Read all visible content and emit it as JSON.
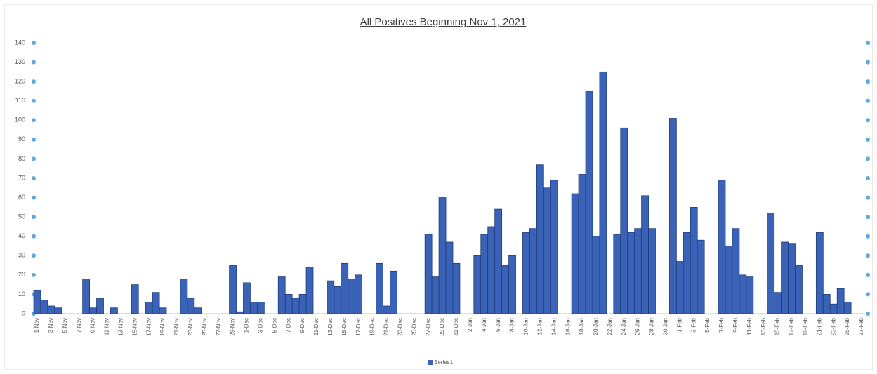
{
  "chart_data": {
    "type": "bar",
    "title": "All Positives Beginning Nov 1, 2021",
    "categories": [
      "1-Nov",
      null,
      "3-Nov",
      null,
      "5-Nov",
      null,
      "7-Nov",
      null,
      "9-Nov",
      null,
      "11-Nov",
      null,
      "13-Nov",
      null,
      "15-Nov",
      null,
      "17-Nov",
      null,
      "19-Nov",
      null,
      "21-Nov",
      null,
      "23-Nov",
      null,
      "25-Nov",
      null,
      "27-Nov",
      null,
      "29-Nov",
      null,
      "1-Dec",
      null,
      "3-Dec",
      null,
      "5-Dec",
      null,
      "7-Dec",
      null,
      "9-Dec",
      null,
      "11-Dec",
      null,
      "13-Dec",
      null,
      "15-Dec",
      null,
      "17-Dec",
      null,
      "19-Dec",
      null,
      "21-Dec",
      null,
      "23-Dec",
      null,
      "25-Dec",
      null,
      "27-Dec",
      null,
      "29-Dec",
      null,
      "31-Dec",
      null,
      "2-Jan",
      null,
      "4-Jan",
      null,
      "6-Jan",
      null,
      "8-Jan",
      null,
      "10-Jan",
      null,
      "12-Jan",
      null,
      "14-Jan",
      null,
      "16-Jan",
      null,
      "18-Jan",
      null,
      "20-Jan",
      null,
      "22-Jan",
      null,
      "24-Jan",
      null,
      "26-Jan",
      null,
      "28-Jan",
      null,
      "30-Jan",
      null,
      "1-Feb",
      null,
      "3-Feb",
      null,
      "5-Feb",
      null,
      "7-Feb",
      null,
      "9-Feb",
      null,
      "11-Feb",
      null,
      "13-Feb",
      null,
      "15-Feb",
      null,
      "17-Feb",
      null,
      "19-Feb",
      null,
      "21-Feb",
      null,
      "23-Feb",
      null,
      "25-Feb",
      null,
      "27-Feb"
    ],
    "series": [
      {
        "name": "Series1",
        "color": "#3a63b8",
        "values": [
          12,
          7,
          4,
          3,
          0,
          0,
          0,
          18,
          3,
          8,
          0,
          3,
          0,
          0,
          15,
          0,
          6,
          11,
          3,
          0,
          0,
          18,
          8,
          3,
          0,
          0,
          0,
          0,
          25,
          1,
          16,
          6,
          6,
          0,
          0,
          19,
          10,
          8,
          10,
          24,
          0,
          0,
          17,
          14,
          26,
          18,
          20,
          0,
          0,
          26,
          4,
          22,
          0,
          0,
          0,
          0,
          41,
          19,
          60,
          37,
          26,
          0,
          0,
          30,
          41,
          45,
          54,
          25,
          30,
          0,
          42,
          44,
          77,
          65,
          69,
          0,
          0,
          62,
          72,
          115,
          40,
          125,
          0,
          41,
          96,
          42,
          44,
          61,
          44,
          0,
          0,
          101,
          27,
          42,
          55,
          38,
          0,
          0,
          69,
          35,
          44,
          20,
          19,
          0,
          0,
          52,
          11,
          37,
          36,
          25,
          0,
          0,
          42,
          10,
          5,
          13,
          6,
          0,
          0
        ]
      }
    ],
    "ylim": [
      0,
      140
    ],
    "yticks": [
      0,
      10,
      20,
      30,
      40,
      50,
      60,
      70,
      80,
      90,
      100,
      110,
      120,
      130,
      140
    ],
    "grid": false,
    "legend": "bottom"
  }
}
